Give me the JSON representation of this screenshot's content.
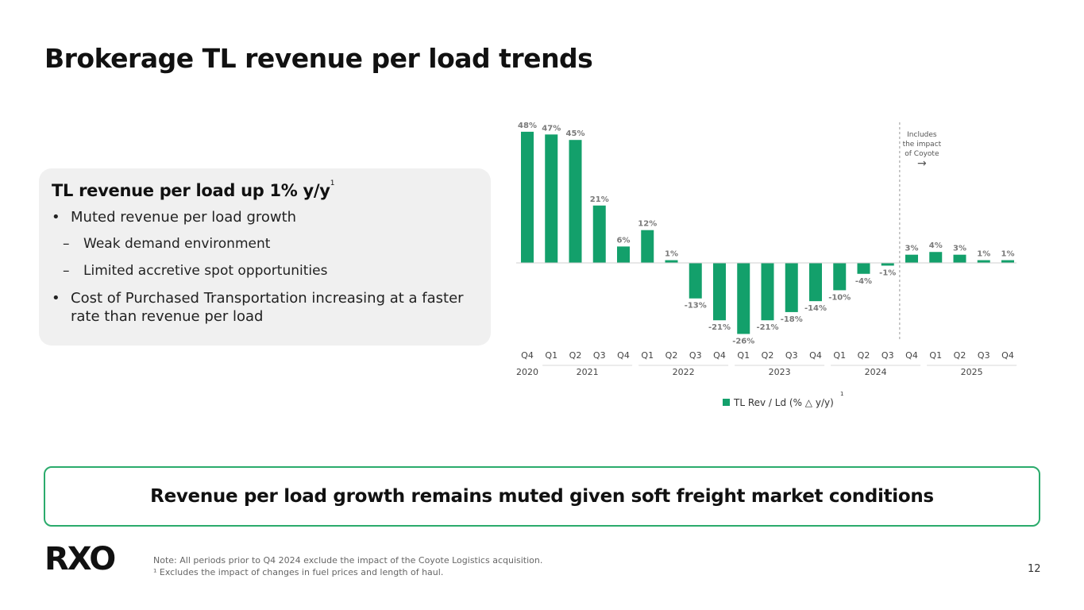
{
  "page": {
    "title": "Brokerage TL revenue per load trends",
    "page_number": "12"
  },
  "callout": {
    "heading": "TL revenue per load up 1% y/y",
    "heading_sup": "1",
    "bullets": [
      {
        "level": 1,
        "text": "Muted revenue per load growth"
      },
      {
        "level": 2,
        "text": "Weak demand environment"
      },
      {
        "level": 2,
        "text": "Limited accretive spot opportunities"
      },
      {
        "level": 1,
        "text": "Cost of Purchased Transportation increasing at a faster rate than revenue per load"
      }
    ]
  },
  "banner": {
    "text": "Revenue per load growth remains muted given soft freight market conditions"
  },
  "footer": {
    "logo": "RXO",
    "note_1": "Note: All periods prior to Q4 2024 exclude the impact of the Coyote Logistics acquisition.",
    "note_2": "¹ Excludes the impact of changes in fuel prices and length of haul."
  },
  "colors": {
    "bar": "#13a06b",
    "accent_border": "#2bab6c",
    "label": "#7a7a7a"
  },
  "chart_data": {
    "type": "bar",
    "title": "",
    "xlabel": "",
    "ylabel": "",
    "categories": [
      "Q4",
      "Q1",
      "Q2",
      "Q3",
      "Q4",
      "Q1",
      "Q2",
      "Q3",
      "Q4",
      "Q1",
      "Q2",
      "Q3",
      "Q4",
      "Q1",
      "Q2",
      "Q3",
      "Q4",
      "Q1",
      "Q2",
      "Q3",
      "Q4"
    ],
    "values": [
      48,
      47,
      45,
      21,
      6,
      12,
      1,
      -13,
      -21,
      -26,
      -21,
      -18,
      -14,
      -10,
      -4,
      -1,
      3,
      4,
      3,
      1,
      1
    ],
    "value_labels": [
      "48%",
      "47%",
      "45%",
      "21%",
      "6%",
      "12%",
      "1%",
      "-13%",
      "-21%",
      "-26%",
      "-21%",
      "-18%",
      "-14%",
      "-10%",
      "-4%",
      "-1%",
      "3%",
      "4%",
      "3%",
      "1%",
      "1%"
    ],
    "year_groups": [
      {
        "label": "2020",
        "start": 0,
        "end": 0
      },
      {
        "label": "2021",
        "start": 1,
        "end": 4
      },
      {
        "label": "2022",
        "start": 5,
        "end": 8
      },
      {
        "label": "2023",
        "start": 9,
        "end": 12
      },
      {
        "label": "2024",
        "start": 13,
        "end": 16
      },
      {
        "label": "2025",
        "start": 17,
        "end": 20
      }
    ],
    "legend": {
      "label": "TL Rev / Ld (% △ y/y)",
      "sup": "1",
      "position": "bottom-center"
    },
    "annotation": {
      "lines": [
        "Includes",
        "the impact",
        "of Coyote"
      ],
      "arrow": "→",
      "divider_after_index": 15
    },
    "ylim": [
      -26,
      48
    ],
    "grid": false
  }
}
